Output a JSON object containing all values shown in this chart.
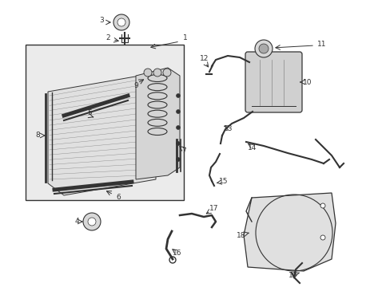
{
  "bg_color": "#ffffff",
  "fig_width": 4.89,
  "fig_height": 3.6,
  "dpi": 100,
  "dark": "#333333",
  "mid": "#888888",
  "light": "#cccccc",
  "box_fill": "#ebebeb",
  "part_fill": "#d8d8d8"
}
